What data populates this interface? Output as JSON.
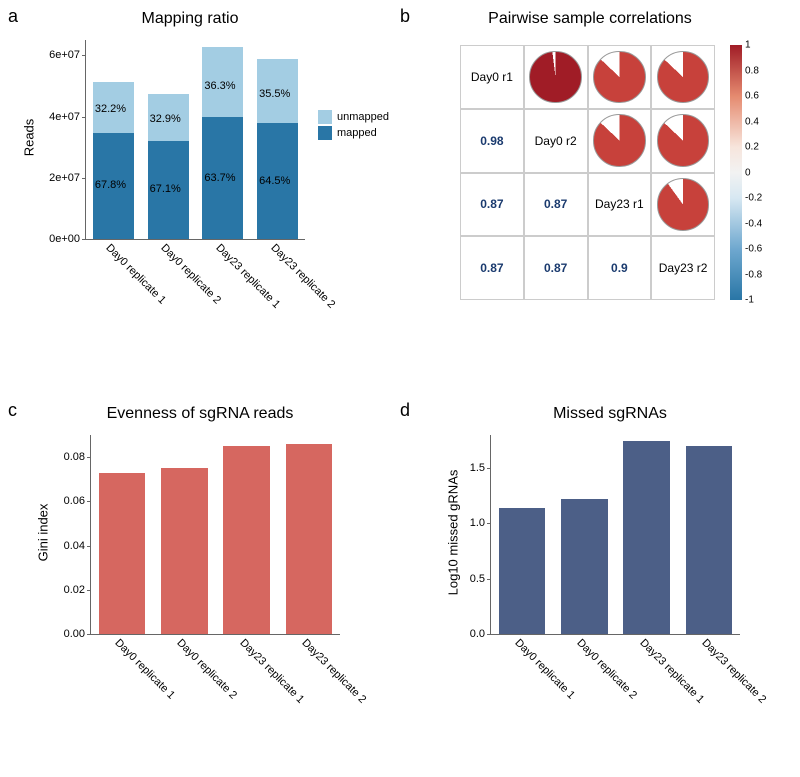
{
  "panel_a": {
    "label": "a",
    "title": "Mapping ratio",
    "ylabel": "Reads",
    "yticks": [
      "0e+00",
      "2e+07",
      "4e+07",
      "6e+07"
    ],
    "ymax": 65000000,
    "categories": [
      "Day0 replicate 1",
      "Day0 replicate 2",
      "Day23 replicate 1",
      "Day23 replicate 2"
    ],
    "mapped": [
      34700000,
      31900000,
      40000000,
      38000000
    ],
    "unmapped": [
      16500000,
      15600000,
      22800000,
      20900000
    ],
    "mapped_pct": [
      "67.8%",
      "67.1%",
      "63.7%",
      "64.5%"
    ],
    "unmapped_pct": [
      "32.2%",
      "32.9%",
      "36.3%",
      "35.5%"
    ],
    "colors": {
      "mapped": "#2976a6",
      "unmapped": "#a3cde3"
    },
    "legend": [
      "unmapped",
      "mapped"
    ]
  },
  "panel_b": {
    "label": "b",
    "title": "Pairwise sample correlations",
    "labels": [
      "Day0 r1",
      "Day0 r2",
      "Day23 r1",
      "Day23 r2"
    ],
    "matrix": [
      [
        1.0,
        0.98,
        0.87,
        0.87
      ],
      [
        0.98,
        1.0,
        0.87,
        0.87
      ],
      [
        0.87,
        0.87,
        1.0,
        0.9
      ],
      [
        0.87,
        0.87,
        0.9,
        1.0
      ]
    ],
    "display_lower": [
      [
        "",
        "",
        "",
        ""
      ],
      [
        "0.98",
        "",
        "",
        ""
      ],
      [
        "0.87",
        "0.87",
        "",
        ""
      ],
      [
        "0.87",
        "0.87",
        "0.9",
        ""
      ]
    ],
    "pie_colors": {
      "high": "#a01c26",
      "med": "#c7413b",
      "empty": "#ffffff"
    },
    "text_color": "#1a3a6e",
    "cbar_ticks": [
      "1",
      "0.8",
      "0.6",
      "0.4",
      "0.2",
      "0",
      "-0.2",
      "-0.4",
      "-0.6",
      "-0.8",
      "-1"
    ]
  },
  "panel_c": {
    "label": "c",
    "title": "Evenness of sgRNA reads",
    "ylabel": "Gini index",
    "yticks": [
      "0.00",
      "0.02",
      "0.04",
      "0.06",
      "0.08"
    ],
    "ymax": 0.09,
    "categories": [
      "Day0 replicate 1",
      "Day0 replicate 2",
      "Day23 replicate 1",
      "Day23 replicate 2"
    ],
    "values": [
      0.073,
      0.075,
      0.085,
      0.086
    ],
    "bar_color": "#d66760"
  },
  "panel_d": {
    "label": "d",
    "title": "Missed sgRNAs",
    "ylabel": "Log10 missed gRNAs",
    "yticks": [
      "0.0",
      "0.5",
      "1.0",
      "1.5"
    ],
    "ymax": 1.8,
    "categories": [
      "Day0 replicate 1",
      "Day0 replicate 2",
      "Day23 replicate 1",
      "Day23 replicate 2"
    ],
    "values": [
      1.14,
      1.22,
      1.75,
      1.7
    ],
    "bar_color": "#4c5f87"
  }
}
